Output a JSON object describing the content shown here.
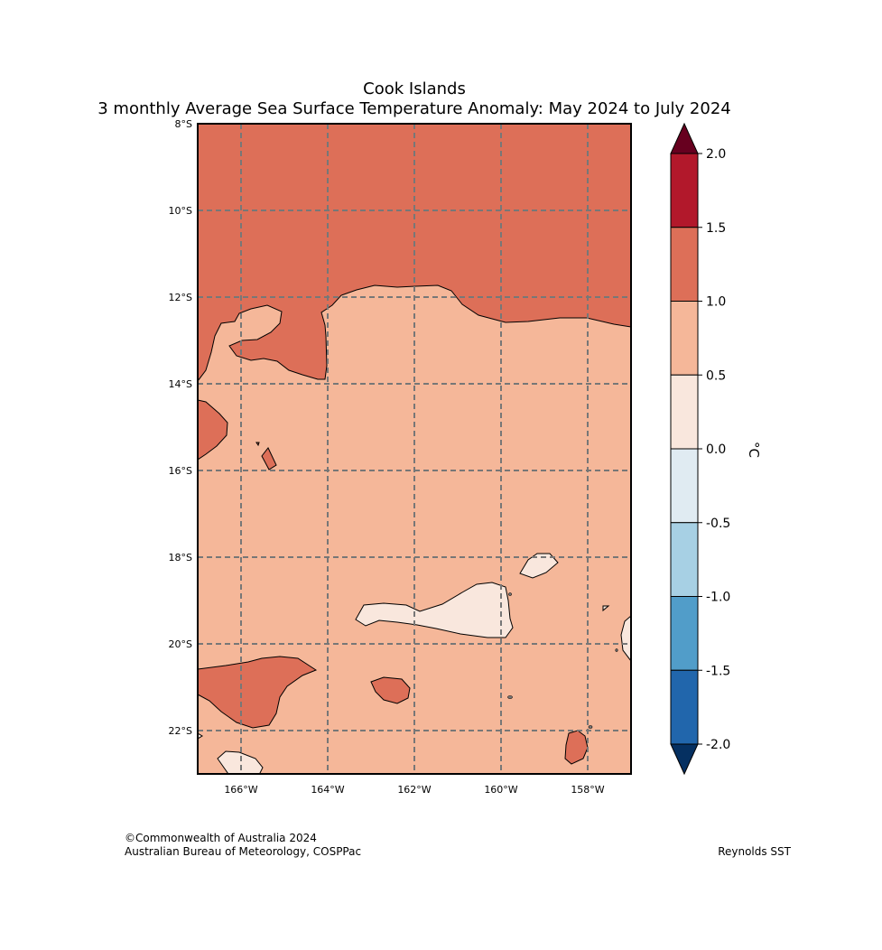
{
  "title": "Cook Islands",
  "subtitle": "3 monthly Average Sea Surface Temperature Anomaly: May 2024 to July 2024",
  "map": {
    "lat_labels": [
      "8°S",
      "10°S",
      "12°S",
      "14°S",
      "16°S",
      "18°S",
      "20°S",
      "22°S"
    ],
    "lon_labels": [
      "166°W",
      "164°W",
      "162°W",
      "160°W",
      "158°W"
    ],
    "gridlines": "dashed"
  },
  "colorbar": {
    "unit": "°C",
    "ticks": [
      "2.0",
      "1.5",
      "1.0",
      "0.5",
      "0.0",
      "-0.5",
      "-1.0",
      "-1.5",
      "-2.0"
    ],
    "colors": [
      "#67001f",
      "#b2182b",
      "#dd6f58",
      "#f5b799",
      "#f9e7dd",
      "#e0ebf2",
      "#a7d0e4",
      "#519dc9",
      "#2166ac",
      "#053061"
    ],
    "color_for_above_2": "#67001f",
    "color_for_below_minus_2": "#053061"
  },
  "footer": {
    "copyright": "©Commonwealth of Australia 2024",
    "org": "Australian Bureau of Meteorology, COSPPac",
    "source": "Reynolds SST"
  }
}
